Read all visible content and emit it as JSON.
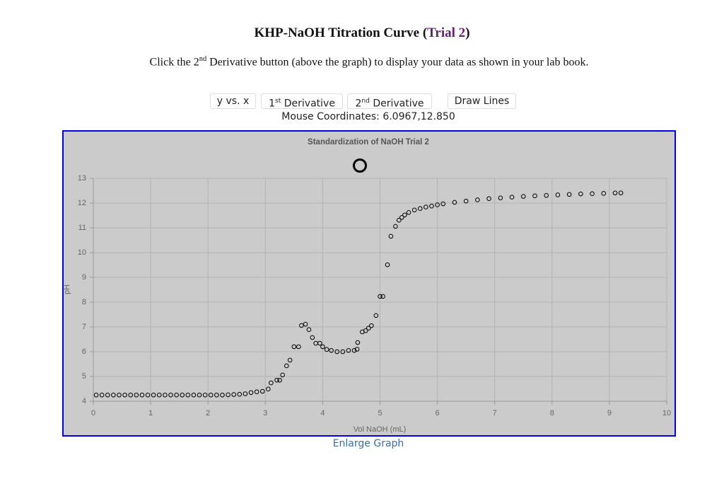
{
  "header": {
    "title_start": "KHP-NaOH Titration Curve (",
    "title_link": "Trial 2",
    "title_end": ")"
  },
  "instructions": {
    "before": "Click the 2",
    "sup": "nd",
    "after": " Derivative button (above the graph) to display your data as shown in your lab book."
  },
  "buttons": [
    {
      "text": "y vs. x"
    },
    {
      "text": "1",
      "sup": "st",
      "rest": " Derivative"
    },
    {
      "text": "2",
      "sup": "nd",
      "rest": " Derivative"
    },
    {
      "text": "Draw Lines"
    }
  ],
  "mouse": {
    "label": "Mouse Coordinates:",
    "value": "6.0967,12.850"
  },
  "chart_data": {
    "type": "scatter",
    "title": "Standardization of NaOH Trial 2",
    "x_label": "Vol NaOH (mL)",
    "y_label": "pH",
    "color": "#000000",
    "grid": true,
    "xlim": [
      0,
      10
    ],
    "ylim": [
      4,
      13
    ],
    "xticks": [
      0,
      1,
      2,
      3,
      4,
      5,
      6,
      7,
      8,
      9,
      10
    ],
    "yticks": [
      4,
      5,
      6,
      7,
      8,
      9,
      10,
      11,
      12,
      13
    ],
    "x": [
      0.05,
      0.15,
      0.25,
      0.35,
      0.45,
      0.55,
      0.65,
      0.75,
      0.85,
      0.95,
      1.05,
      1.15,
      1.25,
      1.35,
      1.45,
      1.55,
      1.65,
      1.75,
      1.85,
      1.95,
      2.05,
      2.15,
      2.25,
      2.35,
      2.45,
      2.55,
      2.65,
      2.75,
      2.85,
      2.95,
      3.05,
      3.1,
      3.2,
      3.25,
      3.3,
      3.37,
      3.43,
      3.5,
      3.58,
      3.63,
      3.7,
      3.76,
      3.82,
      3.88,
      3.95,
      4.0,
      4.07,
      4.15,
      4.25,
      4.35,
      4.45,
      4.55,
      4.6,
      4.61,
      4.69,
      4.75,
      4.8,
      4.85,
      4.93,
      5.0,
      5.05,
      5.13,
      5.19,
      5.27,
      5.33,
      5.38,
      5.43,
      5.5,
      5.6,
      5.7,
      5.8,
      5.9,
      6.0,
      6.1,
      6.3,
      6.5,
      6.7,
      6.9,
      7.1,
      7.3,
      7.5,
      7.7,
      7.9,
      8.1,
      8.3,
      8.5,
      8.7,
      8.9,
      9.1,
      9.2
    ],
    "values": [
      4.25,
      4.25,
      4.25,
      4.25,
      4.25,
      4.25,
      4.25,
      4.25,
      4.25,
      4.25,
      4.25,
      4.25,
      4.25,
      4.25,
      4.25,
      4.25,
      4.25,
      4.25,
      4.25,
      4.25,
      4.25,
      4.25,
      4.25,
      4.26,
      4.27,
      4.28,
      4.3,
      4.35,
      4.38,
      4.4,
      4.49,
      4.74,
      4.85,
      4.85,
      5.06,
      5.43,
      5.66,
      6.2,
      6.2,
      7.06,
      7.11,
      6.89,
      6.57,
      6.34,
      6.34,
      6.2,
      6.09,
      6.05,
      6.0,
      6.0,
      6.05,
      6.05,
      6.1,
      6.37,
      6.8,
      6.85,
      6.95,
      7.05,
      7.46,
      8.23,
      8.23,
      9.51,
      10.66,
      11.06,
      11.31,
      11.42,
      11.52,
      11.62,
      11.72,
      11.78,
      11.84,
      11.88,
      11.93,
      11.97,
      12.03,
      12.08,
      12.13,
      12.18,
      12.21,
      12.24,
      12.27,
      12.29,
      12.31,
      12.33,
      12.35,
      12.37,
      12.38,
      12.39,
      12.41,
      12.41
    ]
  },
  "link": {
    "text": "Enlarge Graph"
  }
}
